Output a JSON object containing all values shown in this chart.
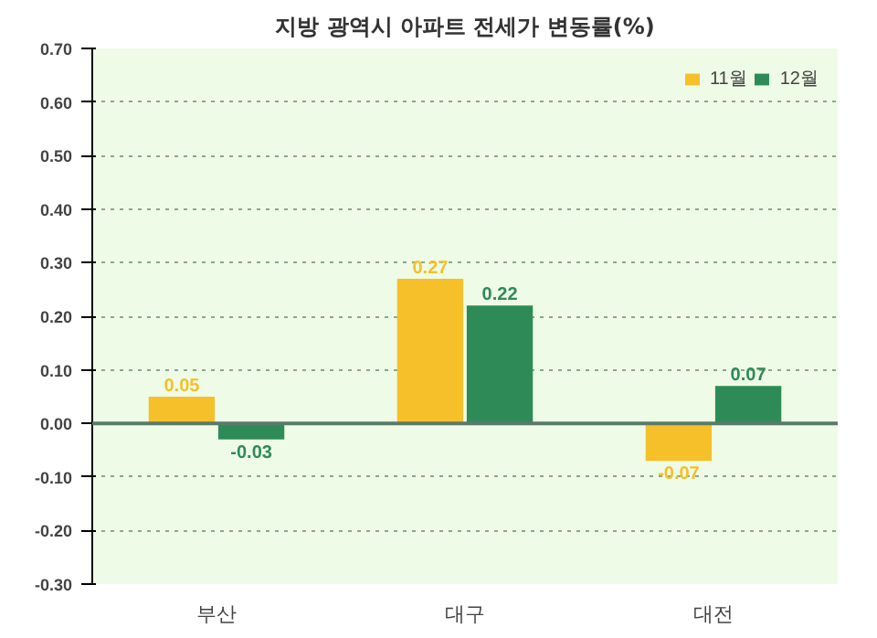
{
  "chart_data": {
    "type": "bar",
    "title": "지방 광역시 아파트 전세가 변동률(%)",
    "categories": [
      "부산",
      "대구",
      "대전"
    ],
    "series": [
      {
        "name": "11월",
        "color": "#f5c02a",
        "values": [
          0.05,
          0.27,
          -0.07
        ],
        "value_labels": [
          "0.05",
          "0.27",
          "-0.07"
        ]
      },
      {
        "name": "12월",
        "color": "#2e8b57",
        "values": [
          -0.03,
          0.22,
          0.07
        ],
        "value_labels": [
          "-0.03",
          "0.22",
          "0.07"
        ]
      }
    ],
    "ylim": [
      -0.3,
      0.7
    ],
    "yticks": [
      {
        "value": -0.3,
        "label": "-0.30"
      },
      {
        "value": -0.2,
        "label": "-0.20"
      },
      {
        "value": -0.1,
        "label": "-0.10"
      },
      {
        "value": 0,
        "label": "0.00"
      },
      {
        "value": 0.1,
        "label": "0.10"
      },
      {
        "value": 0.2,
        "label": "0.20"
      },
      {
        "value": 0.3,
        "label": "0.30"
      },
      {
        "value": 0.4,
        "label": "0.40"
      },
      {
        "value": 0.5,
        "label": "0.50"
      },
      {
        "value": 0.6,
        "label": "0.60"
      },
      {
        "value": 0.7,
        "label": "0.70"
      }
    ],
    "grid": "y",
    "legend": "top right"
  }
}
